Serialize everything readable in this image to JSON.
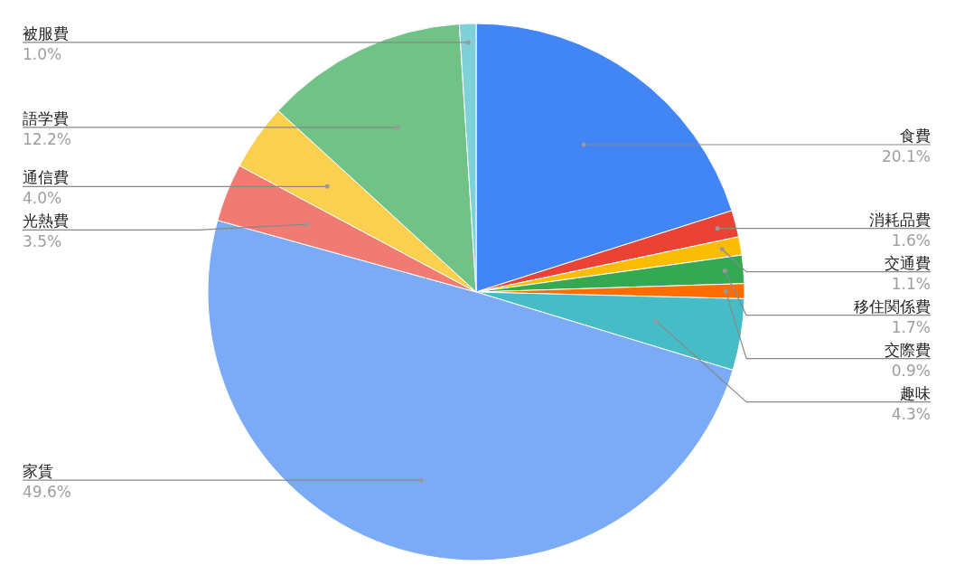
{
  "chart_data": {
    "type": "pie",
    "categories": [
      "食費",
      "消耗品費",
      "交通費",
      "移住関係費",
      "交際費",
      "趣味",
      "家賃",
      "光熱費",
      "通信費",
      "語学費",
      "被服費"
    ],
    "values": [
      20.1,
      1.6,
      1.1,
      1.7,
      0.9,
      4.3,
      49.6,
      3.5,
      4.0,
      12.2,
      1.0
    ],
    "value_labels": [
      "20.1%",
      "1.6%",
      "1.1%",
      "1.7%",
      "0.9%",
      "4.3%",
      "49.6%",
      "3.5%",
      "4.0%",
      "12.2%",
      "1.0%"
    ],
    "colors": [
      "#4285f4",
      "#ea4335",
      "#fbbc04",
      "#34a853",
      "#ff6d01",
      "#46bdc6",
      "#7baaf7",
      "#f07b72",
      "#fcd04f",
      "#71c287",
      "#7ed1d7"
    ]
  }
}
